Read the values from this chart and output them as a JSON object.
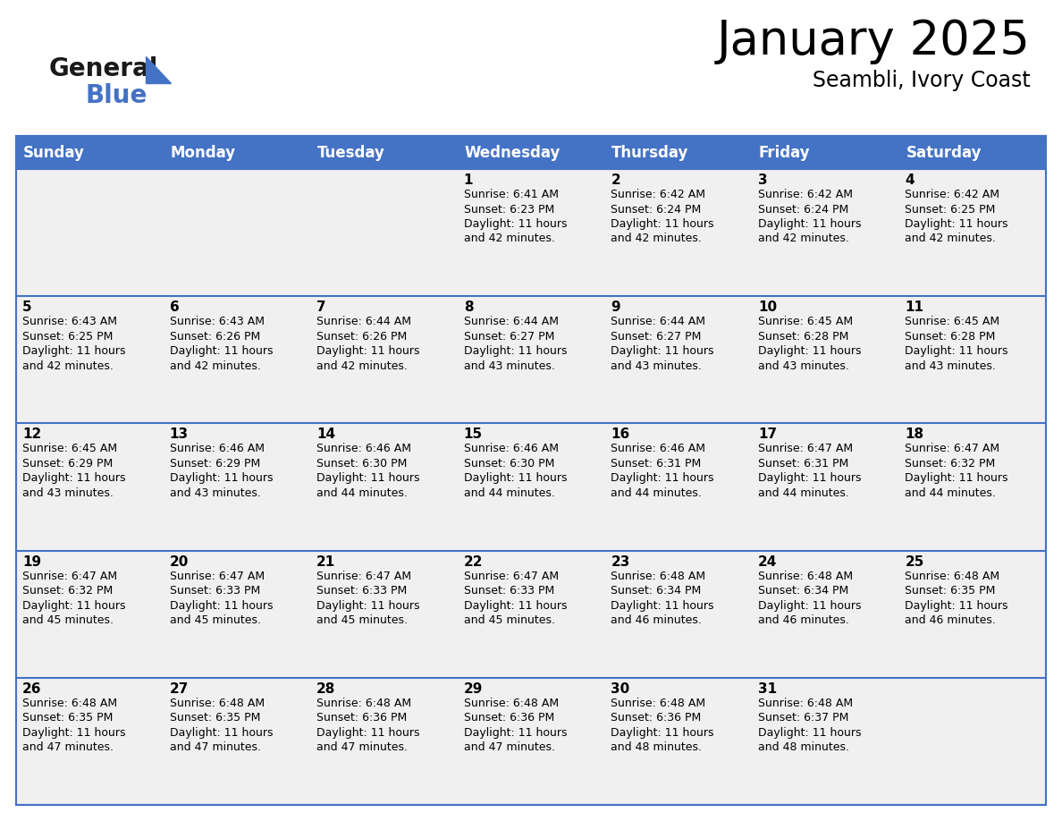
{
  "title": "January 2025",
  "subtitle": "Seambli, Ivory Coast",
  "header_bg": "#4472C4",
  "header_text_color": "#FFFFFF",
  "cell_bg": "#F0F0F0",
  "row_separator_color": "#4472C4",
  "day_headers": [
    "Sunday",
    "Monday",
    "Tuesday",
    "Wednesday",
    "Thursday",
    "Friday",
    "Saturday"
  ],
  "weeks": [
    [
      {
        "day": "",
        "info": ""
      },
      {
        "day": "",
        "info": ""
      },
      {
        "day": "",
        "info": ""
      },
      {
        "day": "1",
        "info": "Sunrise: 6:41 AM\nSunset: 6:23 PM\nDaylight: 11 hours\nand 42 minutes."
      },
      {
        "day": "2",
        "info": "Sunrise: 6:42 AM\nSunset: 6:24 PM\nDaylight: 11 hours\nand 42 minutes."
      },
      {
        "day": "3",
        "info": "Sunrise: 6:42 AM\nSunset: 6:24 PM\nDaylight: 11 hours\nand 42 minutes."
      },
      {
        "day": "4",
        "info": "Sunrise: 6:42 AM\nSunset: 6:25 PM\nDaylight: 11 hours\nand 42 minutes."
      }
    ],
    [
      {
        "day": "5",
        "info": "Sunrise: 6:43 AM\nSunset: 6:25 PM\nDaylight: 11 hours\nand 42 minutes."
      },
      {
        "day": "6",
        "info": "Sunrise: 6:43 AM\nSunset: 6:26 PM\nDaylight: 11 hours\nand 42 minutes."
      },
      {
        "day": "7",
        "info": "Sunrise: 6:44 AM\nSunset: 6:26 PM\nDaylight: 11 hours\nand 42 minutes."
      },
      {
        "day": "8",
        "info": "Sunrise: 6:44 AM\nSunset: 6:27 PM\nDaylight: 11 hours\nand 43 minutes."
      },
      {
        "day": "9",
        "info": "Sunrise: 6:44 AM\nSunset: 6:27 PM\nDaylight: 11 hours\nand 43 minutes."
      },
      {
        "day": "10",
        "info": "Sunrise: 6:45 AM\nSunset: 6:28 PM\nDaylight: 11 hours\nand 43 minutes."
      },
      {
        "day": "11",
        "info": "Sunrise: 6:45 AM\nSunset: 6:28 PM\nDaylight: 11 hours\nand 43 minutes."
      }
    ],
    [
      {
        "day": "12",
        "info": "Sunrise: 6:45 AM\nSunset: 6:29 PM\nDaylight: 11 hours\nand 43 minutes."
      },
      {
        "day": "13",
        "info": "Sunrise: 6:46 AM\nSunset: 6:29 PM\nDaylight: 11 hours\nand 43 minutes."
      },
      {
        "day": "14",
        "info": "Sunrise: 6:46 AM\nSunset: 6:30 PM\nDaylight: 11 hours\nand 44 minutes."
      },
      {
        "day": "15",
        "info": "Sunrise: 6:46 AM\nSunset: 6:30 PM\nDaylight: 11 hours\nand 44 minutes."
      },
      {
        "day": "16",
        "info": "Sunrise: 6:46 AM\nSunset: 6:31 PM\nDaylight: 11 hours\nand 44 minutes."
      },
      {
        "day": "17",
        "info": "Sunrise: 6:47 AM\nSunset: 6:31 PM\nDaylight: 11 hours\nand 44 minutes."
      },
      {
        "day": "18",
        "info": "Sunrise: 6:47 AM\nSunset: 6:32 PM\nDaylight: 11 hours\nand 44 minutes."
      }
    ],
    [
      {
        "day": "19",
        "info": "Sunrise: 6:47 AM\nSunset: 6:32 PM\nDaylight: 11 hours\nand 45 minutes."
      },
      {
        "day": "20",
        "info": "Sunrise: 6:47 AM\nSunset: 6:33 PM\nDaylight: 11 hours\nand 45 minutes."
      },
      {
        "day": "21",
        "info": "Sunrise: 6:47 AM\nSunset: 6:33 PM\nDaylight: 11 hours\nand 45 minutes."
      },
      {
        "day": "22",
        "info": "Sunrise: 6:47 AM\nSunset: 6:33 PM\nDaylight: 11 hours\nand 45 minutes."
      },
      {
        "day": "23",
        "info": "Sunrise: 6:48 AM\nSunset: 6:34 PM\nDaylight: 11 hours\nand 46 minutes."
      },
      {
        "day": "24",
        "info": "Sunrise: 6:48 AM\nSunset: 6:34 PM\nDaylight: 11 hours\nand 46 minutes."
      },
      {
        "day": "25",
        "info": "Sunrise: 6:48 AM\nSunset: 6:35 PM\nDaylight: 11 hours\nand 46 minutes."
      }
    ],
    [
      {
        "day": "26",
        "info": "Sunrise: 6:48 AM\nSunset: 6:35 PM\nDaylight: 11 hours\nand 47 minutes."
      },
      {
        "day": "27",
        "info": "Sunrise: 6:48 AM\nSunset: 6:35 PM\nDaylight: 11 hours\nand 47 minutes."
      },
      {
        "day": "28",
        "info": "Sunrise: 6:48 AM\nSunset: 6:36 PM\nDaylight: 11 hours\nand 47 minutes."
      },
      {
        "day": "29",
        "info": "Sunrise: 6:48 AM\nSunset: 6:36 PM\nDaylight: 11 hours\nand 47 minutes."
      },
      {
        "day": "30",
        "info": "Sunrise: 6:48 AM\nSunset: 6:36 PM\nDaylight: 11 hours\nand 48 minutes."
      },
      {
        "day": "31",
        "info": "Sunrise: 6:48 AM\nSunset: 6:37 PM\nDaylight: 11 hours\nand 48 minutes."
      },
      {
        "day": "",
        "info": ""
      }
    ]
  ],
  "logo_general_color": "#1a1a1a",
  "logo_blue_color": "#4472C4",
  "title_fontsize": 38,
  "subtitle_fontsize": 17,
  "header_fontsize": 12,
  "day_num_fontsize": 11,
  "info_fontsize": 9.0,
  "fig_width": 11.88,
  "fig_height": 9.18
}
